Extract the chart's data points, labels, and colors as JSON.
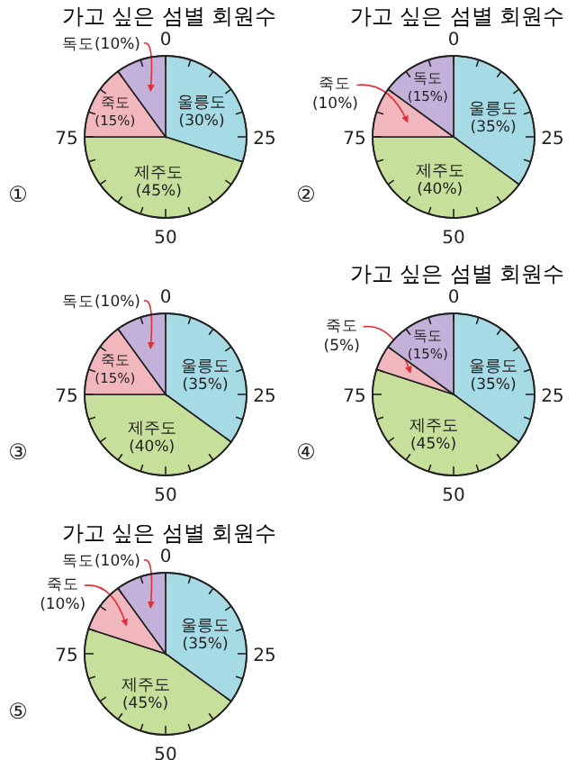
{
  "chart_data": [
    {
      "type": "pie",
      "title": "가고 싶은 섬별 회원수",
      "categories": [
        "울릉도",
        "제주도",
        "죽도",
        "독도"
      ],
      "values": [
        30,
        45,
        15,
        10
      ],
      "colors": [
        "#a6dbe6",
        "#c6df9a",
        "#f2b6bd",
        "#c3b1d9"
      ],
      "value_labels": [
        "(30%)",
        "(45%)",
        "(15%)",
        "(10%)"
      ],
      "annotations": [
        "0",
        "25",
        "50",
        "75",
        "①"
      ]
    },
    {
      "type": "pie",
      "title": "가고 싶은 섬별 회원수",
      "categories": [
        "울릉도",
        "제주도",
        "죽도",
        "독도"
      ],
      "values": [
        35,
        40,
        10,
        15
      ],
      "colors": [
        "#a6dbe6",
        "#c6df9a",
        "#f2b6bd",
        "#c3b1d9"
      ],
      "value_labels": [
        "(35%)",
        "(40%)",
        "(10%)",
        "(15%)"
      ],
      "annotations": [
        "0",
        "25",
        "50",
        "75",
        "②"
      ]
    },
    {
      "type": "pie",
      "categories": [
        "울릉도",
        "제주도",
        "죽도",
        "독도"
      ],
      "values": [
        35,
        40,
        15,
        10
      ],
      "colors": [
        "#a6dbe6",
        "#c6df9a",
        "#f2b6bd",
        "#c3b1d9"
      ],
      "value_labels": [
        "(35%)",
        "(40%)",
        "(15%)",
        "(10%)"
      ],
      "annotations": [
        "0",
        "25",
        "50",
        "75",
        "③"
      ]
    },
    {
      "type": "pie",
      "title": "가고 싶은 섬별 회원수",
      "categories": [
        "울릉도",
        "제주도",
        "죽도",
        "독도"
      ],
      "values": [
        35,
        45,
        5,
        15
      ],
      "colors": [
        "#a6dbe6",
        "#c6df9a",
        "#f2b6bd",
        "#c3b1d9"
      ],
      "value_labels": [
        "(35%)",
        "(45%)",
        "(5%)",
        "(15%)"
      ],
      "annotations": [
        "0",
        "25",
        "50",
        "75",
        "④"
      ]
    },
    {
      "type": "pie",
      "title": "가고 싶은 섬별 회원수",
      "categories": [
        "울릉도",
        "제주도",
        "죽도",
        "독도"
      ],
      "values": [
        35,
        45,
        10,
        10
      ],
      "colors": [
        "#a6dbe6",
        "#c6df9a",
        "#f2b6bd",
        "#c3b1d9"
      ],
      "value_labels": [
        "(35%)",
        "(45%)",
        "(10%)",
        "(10%)"
      ],
      "annotations": [
        "0",
        "25",
        "50",
        "75",
        "⑤"
      ]
    }
  ]
}
